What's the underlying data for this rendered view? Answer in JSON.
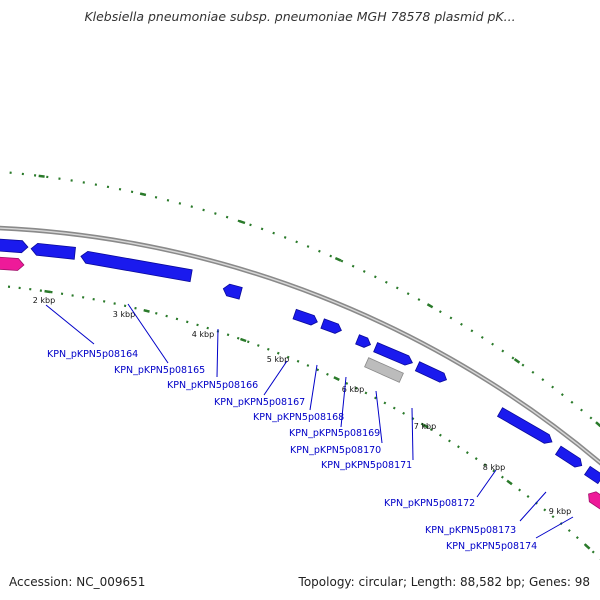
{
  "header": {
    "title": "Klebsiella pneumoniae subsp. pneumoniae MGH 78578 plasmid pK..."
  },
  "footer": {
    "accession": "Accession: NC_009651",
    "summary": "Topology: circular; Length: 88,582 bp; Genes: 98"
  },
  "colors": {
    "cds": "#1a1aee",
    "cds_dark": "#0a0a9a",
    "highlight": "#ee1a99",
    "pseudo": "#bcbcbc",
    "backbone": "#8c8c8c",
    "tick": "#2a7a2a",
    "leader": "#0000c8"
  },
  "scale": {
    "labels": [
      "2 kbp",
      "3 kbp",
      "4 kbp",
      "5 kbp",
      "6 kbp",
      "7 kbp",
      "8 kbp",
      "9 kbp"
    ]
  },
  "genes": [
    {
      "id": "KPN_pKPN5p08164"
    },
    {
      "id": "KPN_pKPN5p08165"
    },
    {
      "id": "KPN_pKPN5p08166"
    },
    {
      "id": "KPN_pKPN5p08167"
    },
    {
      "id": "KPN_pKPN5p08168"
    },
    {
      "id": "KPN_pKPN5p08169"
    },
    {
      "id": "KPN_pKPN5p08170"
    },
    {
      "id": "KPN_pKPN5p08171"
    },
    {
      "id": "KPN_pKPN5p08172"
    },
    {
      "id": "KPN_pKPN5p08173"
    },
    {
      "id": "KPN_pKPN5p08174"
    }
  ]
}
